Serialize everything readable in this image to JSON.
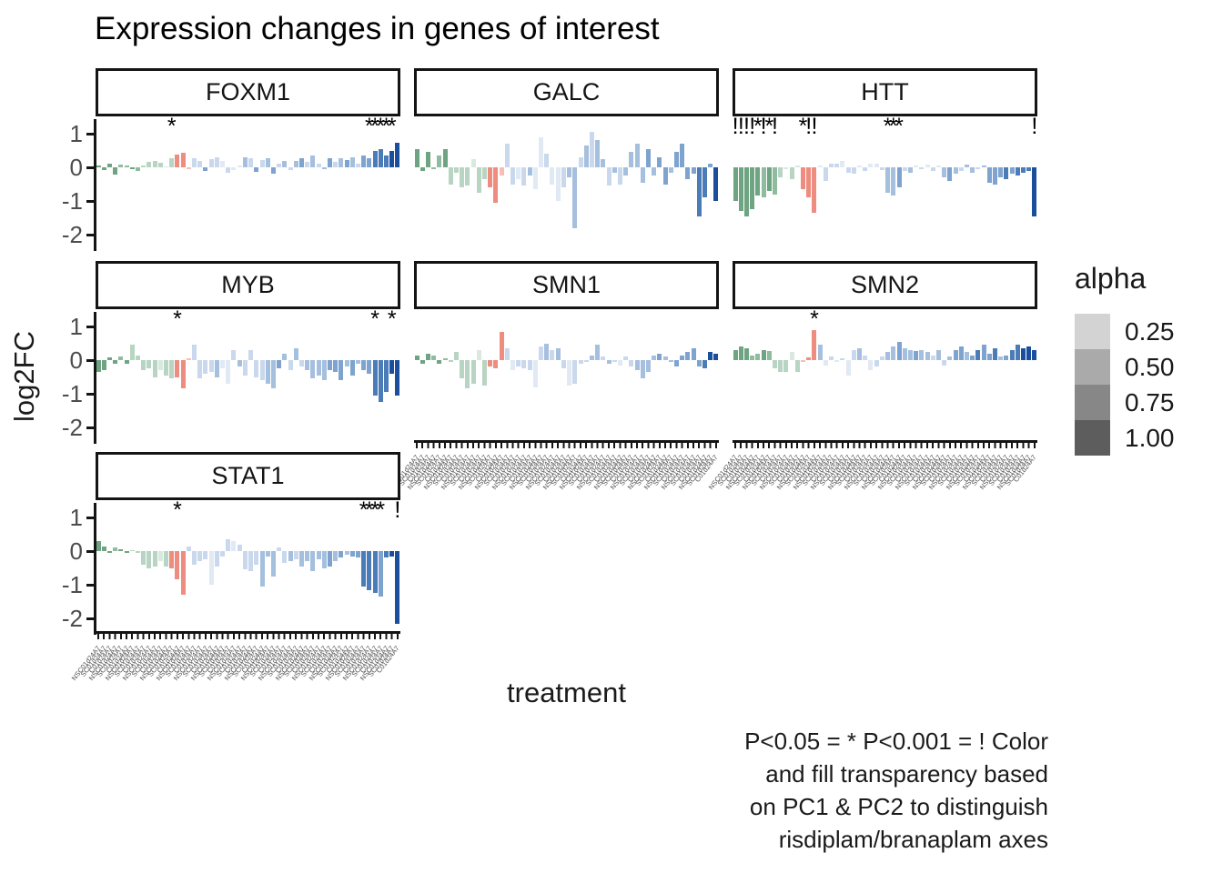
{
  "title": "Expression changes in genes of interest",
  "y_axis": {
    "label": "log2FC",
    "ticks": [
      "1",
      "0",
      "-1",
      "-2"
    ],
    "tick_values": [
      1,
      0,
      -1,
      -2
    ]
  },
  "x_axis": {
    "label": "treatment",
    "n_ticks": 54,
    "tick_labels_legible": false,
    "tick_label_placeholder": "NSC01d24A7"
  },
  "legend": {
    "title": "alpha",
    "items": [
      {
        "label": "0.25",
        "color": "#d3d3d3"
      },
      {
        "label": "0.50",
        "color": "#aaaaaa"
      },
      {
        "label": "0.75",
        "color": "#878787"
      },
      {
        "label": "1.00",
        "color": "#5d5d5d"
      }
    ]
  },
  "caption_lines": [
    "P<0.05 = * P<0.001 = ! Color",
    "and fill transparency based",
    "on PC1 & PC2 to distinguish",
    "risdiplam/branaplam axes"
  ],
  "chart_data": {
    "type": "bar",
    "title": "Expression changes in genes of interest",
    "xlabel": "treatment",
    "ylabel": "log2FC",
    "ylim": [
      -2.38,
      1.32
    ],
    "yticks": [
      1,
      0,
      -1,
      -2
    ],
    "n_bars_per_facet": 54,
    "significance_key": {
      "*": "P<0.05",
      "!": "P<0.001"
    },
    "palette": {
      "g1": "#6ea481",
      "g1l": "#8fbc9e",
      "g2": "#b8d4c2",
      "g3": "#d9e9df",
      "r1": "#ee8d7f",
      "r1l": "#f6beb4",
      "b1": "#e0e9f4",
      "b2": "#c9d8ec",
      "b3": "#a5bfde",
      "b4": "#7ea3cf",
      "b5": "#4c7cb8",
      "b6": "#1b4f9e"
    },
    "facets": [
      {
        "name": "FOXM1",
        "values": [
          0.05,
          -0.08,
          0.1,
          -0.22,
          0.08,
          0.06,
          -0.06,
          -0.1,
          0.05,
          0.17,
          0.2,
          0.15,
          0.04,
          0.27,
          0.38,
          0.44,
          -0.05,
          0.28,
          0.2,
          -0.1,
          0.24,
          0.3,
          0.2,
          -0.16,
          -0.08,
          0.05,
          0.3,
          0.26,
          -0.14,
          0.22,
          0.26,
          -0.18,
          0.12,
          0.18,
          -0.08,
          0.2,
          0.28,
          0.16,
          0.34,
          0.1,
          -0.06,
          0.26,
          0.16,
          0.28,
          0.22,
          0.3,
          0.12,
          0.34,
          0.27,
          0.5,
          0.55,
          0.35,
          0.5,
          0.72
        ],
        "colors": [
          "g1",
          "g1",
          "g1",
          "g1",
          "g1l",
          "g1l",
          "g1",
          "g1l",
          "g2",
          "g2",
          "g2",
          "g2",
          "g3",
          "g2",
          "r1",
          "r1",
          "r1l",
          "b2",
          "b2",
          "b4",
          "b2",
          "b2",
          "b1",
          "b2",
          "b1",
          "b1",
          "b3",
          "b2",
          "b4",
          "b2",
          "b3",
          "b4",
          "b2",
          "b3",
          "b2",
          "b3",
          "b4",
          "b2",
          "b3",
          "b2",
          "b3",
          "b4",
          "b2",
          "b3",
          "b4",
          "b3",
          "b2",
          "b4",
          "b4",
          "b5",
          "b5",
          "b5",
          "b6",
          "b6"
        ],
        "sig": {
          "13": "*",
          "48": "*",
          "49": "*",
          "50": "*",
          "51": "*",
          "52": "*"
        }
      },
      {
        "name": "GALC",
        "values": [
          0.55,
          -0.12,
          0.45,
          -0.06,
          0.35,
          0.55,
          -0.5,
          -0.15,
          -0.6,
          -0.55,
          0.25,
          -0.75,
          -0.35,
          -0.6,
          -1.05,
          -0.25,
          0.7,
          -0.5,
          -0.35,
          -0.55,
          -0.25,
          -0.65,
          0.9,
          0.4,
          -0.5,
          -1.0,
          -0.6,
          -0.3,
          -1.8,
          0.3,
          0.65,
          1.05,
          0.8,
          0.25,
          -0.55,
          -0.15,
          -0.5,
          -0.25,
          0.45,
          0.7,
          -0.45,
          0.55,
          -0.25,
          0.3,
          -0.5,
          -0.15,
          0.45,
          0.7,
          -0.35,
          -0.2,
          -1.45,
          -0.9,
          0.1,
          -1.0
        ],
        "colors": [
          "g1",
          "g1",
          "g1",
          "g1l",
          "g1l",
          "g1",
          "g2",
          "g2",
          "g2",
          "g2",
          "g3",
          "g2",
          "g2",
          "r1",
          "r1",
          "r1l",
          "b2",
          "b2",
          "b1",
          "b2",
          "b3",
          "b1",
          "b1",
          "b2",
          "b1",
          "b1",
          "b2",
          "b3",
          "b3",
          "b2",
          "b3",
          "b2",
          "b3",
          "b3",
          "b2",
          "b3",
          "b2",
          "b3",
          "b3",
          "b3",
          "b3",
          "b4",
          "b3",
          "b4",
          "b4",
          "b3",
          "b4",
          "b4",
          "b4",
          "b4",
          "b5",
          "b5",
          "b4",
          "b6"
        ],
        "sig": {}
      },
      {
        "name": "HTT",
        "values": [
          -1.0,
          -1.3,
          -1.45,
          -1.25,
          -0.85,
          -0.9,
          -0.7,
          -0.8,
          -0.3,
          -0.05,
          -0.35,
          0.05,
          -0.65,
          -0.9,
          -1.35,
          0.05,
          -0.4,
          0.12,
          0.1,
          0.18,
          -0.15,
          -0.2,
          0.05,
          -0.12,
          0.1,
          0.12,
          -0.08,
          -0.75,
          -0.85,
          -0.6,
          -0.1,
          -0.15,
          0.05,
          -0.05,
          0.08,
          -0.1,
          0.05,
          -0.3,
          -0.4,
          -0.2,
          -0.1,
          0.08,
          -0.15,
          -0.05,
          0.05,
          -0.45,
          -0.5,
          -0.3,
          -0.35,
          -0.2,
          -0.25,
          -0.15,
          -0.1,
          -1.45
        ],
        "colors": [
          "g1",
          "g1",
          "g1",
          "g1",
          "g1",
          "g1l",
          "g1",
          "g1l",
          "g2",
          "g3",
          "g2",
          "g3",
          "r1",
          "r1",
          "r1",
          "b1",
          "b2",
          "b2",
          "b2",
          "b1",
          "b2",
          "b2",
          "b1",
          "b2",
          "b1",
          "b1",
          "b2",
          "b3",
          "b3",
          "b4",
          "b2",
          "b3",
          "b1",
          "b2",
          "b1",
          "b2",
          "b1",
          "b3",
          "b4",
          "b3",
          "b2",
          "b3",
          "b3",
          "b2",
          "b3",
          "b4",
          "b4",
          "b4",
          "b5",
          "b4",
          "b5",
          "b5",
          "b5",
          "b6"
        ],
        "sig": {
          "0": "!",
          "1": "!",
          "2": "!",
          "3": "!",
          "4": "*",
          "5": "!",
          "6": "*",
          "7": "!",
          "12": "*",
          "13": "!",
          "14": "!",
          "27": "*",
          "28": "*",
          "29": "*",
          "53": "!"
        }
      },
      {
        "name": "MYB",
        "values": [
          -0.35,
          -0.3,
          0.08,
          -0.12,
          0.1,
          -0.1,
          0.45,
          0.15,
          -0.3,
          -0.25,
          -0.5,
          -0.3,
          -0.45,
          -0.55,
          -0.5,
          -0.85,
          0.06,
          0.45,
          -0.55,
          -0.4,
          -0.35,
          -0.5,
          -0.25,
          -0.7,
          0.3,
          -0.2,
          -0.45,
          0.3,
          -0.5,
          -0.6,
          -0.7,
          -0.85,
          -0.25,
          0.2,
          -0.3,
          0.35,
          -0.2,
          -0.3,
          -0.55,
          -0.45,
          -0.6,
          -0.3,
          -0.35,
          -0.6,
          -0.2,
          -0.45,
          -0.1,
          -0.3,
          -0.4,
          -1.05,
          -1.25,
          -0.95,
          -0.4,
          -1.05
        ],
        "colors": [
          "g1",
          "g1",
          "g1",
          "g1",
          "g1l",
          "g1",
          "g2",
          "g2",
          "g2",
          "g2",
          "g2",
          "g3",
          "g2",
          "g2",
          "r1",
          "r1",
          "r1l",
          "b2",
          "b2",
          "b2",
          "b2",
          "b3",
          "b1",
          "b1",
          "b2",
          "b3",
          "b2",
          "b2",
          "b2",
          "b2",
          "b3",
          "b3",
          "b4",
          "b3",
          "b2",
          "b3",
          "b2",
          "b3",
          "b3",
          "b3",
          "b3",
          "b4",
          "b4",
          "b4",
          "b3",
          "b4",
          "b3",
          "b4",
          "b4",
          "b5",
          "b5",
          "b5",
          "b6",
          "b6"
        ],
        "sig": {
          "14": "*",
          "49": "*",
          "52": "*"
        }
      },
      {
        "name": "SMN1",
        "values": [
          0.15,
          -0.12,
          0.2,
          0.15,
          -0.1,
          0.05,
          -0.05,
          0.25,
          -0.55,
          -0.85,
          -0.7,
          0.3,
          -0.75,
          -0.2,
          -0.25,
          0.85,
          0.35,
          -0.3,
          -0.2,
          -0.25,
          -0.3,
          -0.8,
          0.4,
          0.5,
          0.3,
          0.35,
          -0.25,
          -0.75,
          -0.7,
          -0.1,
          -0.05,
          0.15,
          0.45,
          0.1,
          -0.1,
          -0.05,
          -0.15,
          0.1,
          -0.2,
          -0.3,
          -0.55,
          -0.35,
          0.15,
          0.2,
          0.1,
          -0.05,
          -0.2,
          0.15,
          0.25,
          0.35,
          -0.2,
          -0.25,
          0.25,
          0.2
        ],
        "colors": [
          "g1",
          "g1",
          "g1",
          "g1l",
          "g1",
          "g1l",
          "g2",
          "g2",
          "g2",
          "g2",
          "g2",
          "g3",
          "g2",
          "r1",
          "r1",
          "r1",
          "b2",
          "b1",
          "b2",
          "b2",
          "b2",
          "b1",
          "b2",
          "b3",
          "b2",
          "b3",
          "b2",
          "b1",
          "b2",
          "b2",
          "b2",
          "b3",
          "b3",
          "b2",
          "b3",
          "b2",
          "b1",
          "b2",
          "b2",
          "b3",
          "b3",
          "b3",
          "b3",
          "b4",
          "b3",
          "b3",
          "b4",
          "b4",
          "b4",
          "b4",
          "b4",
          "b5",
          "b6",
          "b6"
        ],
        "sig": {}
      },
      {
        "name": "SMN2",
        "values": [
          0.3,
          0.4,
          0.35,
          0.15,
          0.2,
          0.3,
          0.28,
          -0.25,
          -0.35,
          -0.35,
          0.25,
          -0.35,
          -0.05,
          0.08,
          0.9,
          0.45,
          -0.15,
          0.1,
          -0.05,
          0.05,
          -0.45,
          0.3,
          0.35,
          0.15,
          -0.3,
          -0.2,
          0.12,
          0.25,
          0.4,
          0.55,
          0.35,
          0.3,
          0.28,
          0.3,
          0.25,
          0.15,
          0.3,
          -0.15,
          0.1,
          0.3,
          0.4,
          0.25,
          0.15,
          0.3,
          0.45,
          0.2,
          0.35,
          0.1,
          0.15,
          0.3,
          0.45,
          0.35,
          0.4,
          0.3
        ],
        "colors": [
          "g1",
          "g1",
          "g1",
          "g1l",
          "g1l",
          "g1",
          "g1l",
          "g2",
          "g2",
          "g2",
          "g3",
          "g2",
          "r1l",
          "r1",
          "r1",
          "b3",
          "b1",
          "b2",
          "b1",
          "b2",
          "b1",
          "b2",
          "b3",
          "b2",
          "b1",
          "b2",
          "b2",
          "b3",
          "b3",
          "b4",
          "b3",
          "b3",
          "b4",
          "b3",
          "b3",
          "b2",
          "b3",
          "b2",
          "b3",
          "b4",
          "b4",
          "b3",
          "b4",
          "b5",
          "b4",
          "b4",
          "b5",
          "b3",
          "b4",
          "b5",
          "b5",
          "b6",
          "b6",
          "b6"
        ],
        "sig": {
          "14": "*"
        }
      },
      {
        "name": "STAT1",
        "values": [
          0.3,
          0.15,
          -0.05,
          0.1,
          0.05,
          -0.05,
          0.02,
          -0.05,
          -0.4,
          -0.5,
          -0.45,
          -0.3,
          -0.45,
          -0.5,
          -0.85,
          -1.3,
          0.15,
          -0.4,
          -0.3,
          -0.25,
          -1.0,
          -0.45,
          -0.15,
          0.35,
          0.3,
          0.2,
          -0.55,
          -0.6,
          -0.4,
          -1.05,
          -0.15,
          -0.75,
          0.1,
          -0.35,
          -0.3,
          -0.25,
          -0.45,
          -0.3,
          -0.6,
          -0.25,
          -0.5,
          -0.45,
          -0.3,
          -0.2,
          -0.1,
          -0.15,
          -0.2,
          -1.05,
          -1.15,
          -1.25,
          -1.35,
          -0.2,
          -0.15,
          -2.15
        ],
        "colors": [
          "g1",
          "g1",
          "g1",
          "g1l",
          "g1",
          "g1",
          "g2",
          "g2",
          "g2",
          "g2",
          "g2",
          "g3",
          "g2",
          "r1",
          "r1",
          "r1",
          "b2",
          "b2",
          "b2",
          "b2",
          "b1",
          "b2",
          "b2",
          "b2",
          "b1",
          "b2",
          "b2",
          "b2",
          "b2",
          "b3",
          "b3",
          "b3",
          "b2",
          "b2",
          "b3",
          "b2",
          "b3",
          "b3",
          "b3",
          "b3",
          "b3",
          "b4",
          "b3",
          "b4",
          "b3",
          "b4",
          "b4",
          "b5",
          "b5",
          "b5",
          "b4",
          "b5",
          "b6",
          "b6"
        ],
        "sig": {
          "14": "*",
          "47": "*",
          "48": "*",
          "49": "*",
          "50": "*",
          "53": "!"
        }
      }
    ]
  }
}
